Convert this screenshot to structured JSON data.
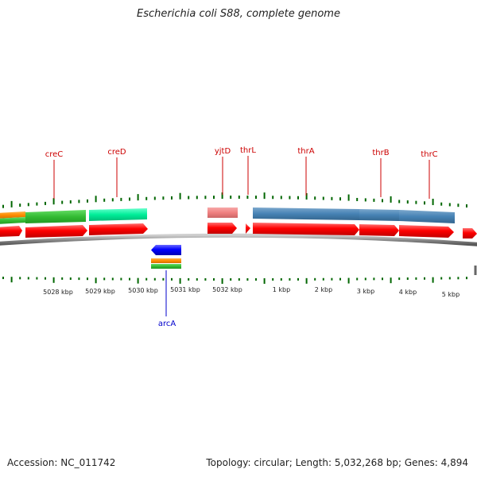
{
  "title": "Escherichia coli S88, complete genome",
  "footer": {
    "accession": "Accession: NC_011742",
    "summary": "Topology: circular; Length: 5,032,268 bp; Genes: 4,894"
  },
  "scale_labels": [
    "5028 kbp",
    "5029 kbp",
    "5030 kbp",
    "5031 kbp",
    "5032 kbp",
    "1 kbp",
    "2 kbp",
    "3 kbp",
    "4 kbp",
    "5 kbp"
  ],
  "gene_labels": {
    "forward": [
      "creC",
      "creD",
      "yjtD",
      "thrL",
      "thrA",
      "thrB",
      "thrC"
    ],
    "reverse": [
      "arcA"
    ]
  },
  "colors": {
    "gene_forward": "#ff0000",
    "gene_reverse": "#0000ff",
    "label_forward": "#cc0000",
    "label_reverse": "#0000cc",
    "backbone": "#888888",
    "ticks": "#006600",
    "orange_feature": "#ff8c00",
    "green_feature": "#33cc33",
    "aqua_feature": "#00ee99",
    "pink_feature": "#f08080",
    "blue_feature": "#4682b4"
  }
}
